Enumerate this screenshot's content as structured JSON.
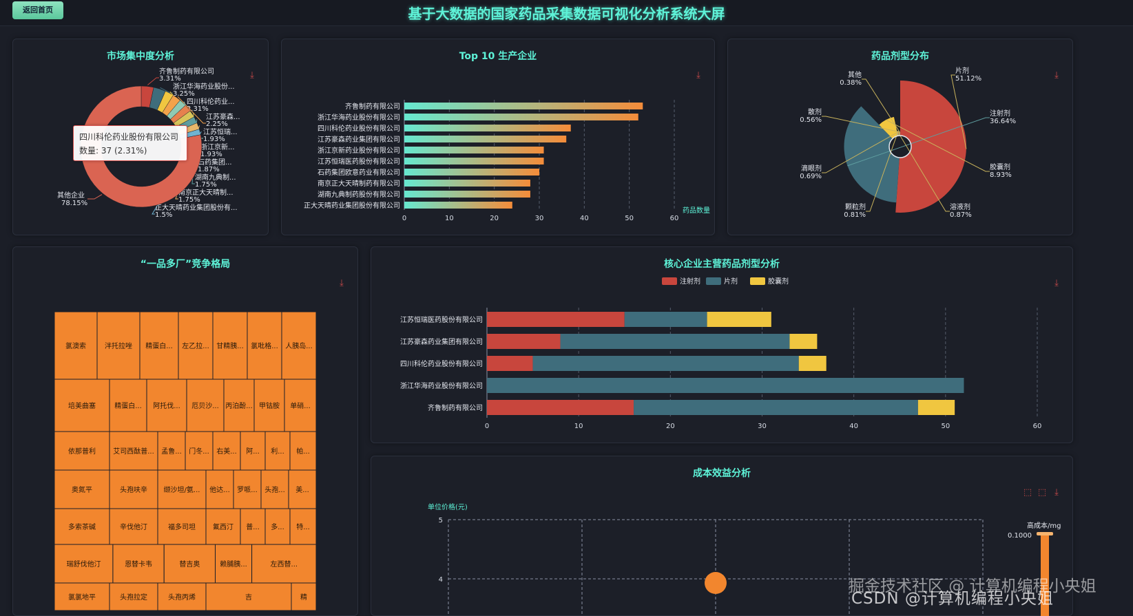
{
  "header": {
    "back_label": "返回首页",
    "title": "基于大数据的国家药品采集数据可视化分析系统大屏"
  },
  "market": {
    "title": "市场集中度分析",
    "tooltip_name": "四川科伦药业股份有限公司",
    "tooltip_value": "数量: 37 (2.31%)",
    "slices": [
      {
        "name": "齐鲁制药有限公司",
        "pct": 3.31,
        "label": "齐鲁制药有限公司",
        "pct_label": "3.31%",
        "color": "#c8463d"
      },
      {
        "name": "浙江华海药业股份有限公司",
        "pct": 3.25,
        "label": "浙江华海药业股份...",
        "pct_label": "3.25%",
        "color": "#3f6d7c"
      },
      {
        "name": "四川科伦药业股份有限公司",
        "pct": 2.31,
        "label": "四川科伦药业...",
        "pct_label": "2.31%",
        "color": "#f0c640"
      },
      {
        "name": "江苏豪森药业集团有限公司",
        "pct": 2.25,
        "label": "江苏豪森...",
        "pct_label": "2.25%",
        "color": "#f3a24a"
      },
      {
        "name": "江苏恒瑞医药股份有限公司",
        "pct": 1.93,
        "label": "江苏恒瑞...",
        "pct_label": "1.93%",
        "color": "#8fcab3"
      },
      {
        "name": "浙江京新药业股份有限公司",
        "pct": 1.93,
        "label": "浙江京新...",
        "pct_label": "1.93%",
        "color": "#e6814e"
      },
      {
        "name": "石药集团欧意药业有限公司",
        "pct": 1.87,
        "label": "石药集团...",
        "pct_label": "1.87%",
        "color": "#d9c55a"
      },
      {
        "name": "湖南九典制药股份有限公司",
        "pct": 1.75,
        "label": "湖南九典制...",
        "pct_label": "1.75%",
        "color": "#5f9ea0"
      },
      {
        "name": "南京正大天晴制药有限公司",
        "pct": 1.75,
        "label": "南京正大天晴制...",
        "pct_label": "1.75%",
        "color": "#e8b66a"
      },
      {
        "name": "正大天晴药业集团股份有限公司",
        "pct": 1.5,
        "label": "正大天晴药业集团股份有...",
        "pct_label": "1.5%",
        "color": "#6fb3d2"
      },
      {
        "name": "其他企业",
        "pct": 78.15,
        "label": "其他企业",
        "pct_label": "78.15%",
        "color": "#da6452"
      }
    ]
  },
  "top10": {
    "title": "Top 10 生产企业",
    "axis_name": "药品数量",
    "ticks": [
      "0",
      "10",
      "20",
      "30",
      "40",
      "50",
      "60"
    ]
  },
  "dosage": {
    "title": "药品剂型分布"
  },
  "treemap": {
    "title": "“一品多厂”竞争格局",
    "cells": [
      "氯澳索",
      "泮托拉唑",
      "精蛋白...",
      "左乙拉...",
      "甘精胰...",
      "氯吡格...",
      "人胰岛...",
      "培美曲塞",
      "精蛋白...",
      "阿托伐...",
      "厄贝沙...",
      "丙泊酚...",
      "甲钴胺",
      "单硝...",
      "依那普利",
      "艾司西酞普...",
      "孟鲁...",
      "门冬...",
      "右美...",
      "阿...",
      "利...",
      "帕...",
      "奥氮平",
      "头孢呋辛",
      "缬沙坦/氨...",
      "他达...",
      "罗哌...",
      "头孢...",
      "美...",
      "多索茶碱",
      "辛伐他汀",
      "福多司坦",
      "氟西汀",
      "普...",
      "多...",
      "特...",
      "瑞舒伐他汀",
      "恩替卡韦",
      "替吉奥",
      "赖脯胰...",
      "左西替...",
      "氯氯地平",
      "头孢拉定",
      "头孢丙烯",
      "吉",
      "精"
    ]
  },
  "core": {
    "title": "核心企业主营药品剂型分析",
    "ticks": [
      "0",
      "10",
      "20",
      "30",
      "40",
      "50",
      "60"
    ]
  },
  "cost": {
    "title": "成本效益分析",
    "yaxis_name": "单位价格(元)",
    "ytick_5": "5",
    "ytick_4": "4",
    "legend_title": "高成本/mg",
    "legend_value": "0.1000"
  },
  "watermark": {
    "line1": "掘金技术社区 @ 计算机编程小央姐",
    "line2": "CSDN @计算机编程小央姐"
  },
  "chart_data": [
    {
      "type": "pie",
      "title": "市场集中度分析",
      "categories": [
        "齐鲁制药有限公司",
        "浙江华海药业股份有限公司",
        "四川科伦药业股份有限公司",
        "江苏豪森药业集团有限公司",
        "江苏恒瑞医药股份有限公司",
        "浙江京新药业股份有限公司",
        "石药集团欧意药业有限公司",
        "湖南九典制药股份有限公司",
        "南京正大天晴制药有限公司",
        "正大天晴药业集团股份有限公司",
        "其他企业"
      ],
      "values": [
        3.31,
        3.25,
        2.31,
        2.25,
        1.93,
        1.93,
        1.87,
        1.75,
        1.75,
        1.5,
        78.15
      ]
    },
    {
      "type": "bar",
      "orientation": "horizontal",
      "title": "Top 10 生产企业",
      "categories": [
        "齐鲁制药有限公司",
        "浙江华海药业股份有限公司",
        "四川科伦药业股份有限公司",
        "江苏豪森药业集团有限公司",
        "浙江京新药业股份有限公司",
        "江苏恒瑞医药股份有限公司",
        "石药集团欧意药业有限公司",
        "南京正大天晴制药有限公司",
        "湖南九典制药股份有限公司",
        "正大天晴药业集团股份有限公司"
      ],
      "values": [
        53,
        52,
        37,
        36,
        31,
        31,
        30,
        28,
        28,
        24
      ],
      "xlabel": "药品数量",
      "xlim": [
        0,
        60
      ]
    },
    {
      "type": "pie",
      "variant": "rose",
      "title": "药品剂型分布",
      "categories": [
        "片剂",
        "注射剂",
        "胶囊剂",
        "溶液剂",
        "颗粒剂",
        "滴眼剂",
        "散剂",
        "其他"
      ],
      "values": [
        51.12,
        36.64,
        8.93,
        0.87,
        0.81,
        0.69,
        0.56,
        0.38
      ],
      "labels": [
        "51.12%",
        "36.64%",
        "8.93%",
        "0.87%",
        "0.81%",
        "0.69%",
        "0.56%",
        "0.38%"
      ],
      "colors": [
        "#c8463d",
        "#3f6d7c",
        "#f0c640",
        "#8fcab3",
        "#e6814e",
        "#d9c55a",
        "#5f9ea0",
        "#e8b66a"
      ]
    },
    {
      "type": "bar",
      "orientation": "horizontal",
      "stacked": true,
      "title": "核心企业主营药品剂型分析",
      "categories": [
        "江苏恒瑞医药股份有限公司",
        "江苏豪森药业集团有限公司",
        "四川科伦药业股份有限公司",
        "浙江华海药业股份有限公司",
        "齐鲁制药有限公司"
      ],
      "series": [
        {
          "name": "注射剂",
          "values": [
            15,
            8,
            5,
            0,
            16
          ],
          "color": "#c8463d"
        },
        {
          "name": "片剂",
          "values": [
            9,
            25,
            29,
            52,
            31
          ],
          "color": "#3f6d7c"
        },
        {
          "name": "胶囊剂",
          "values": [
            7,
            3,
            3,
            0,
            4
          ],
          "color": "#f0c640"
        }
      ],
      "xlim": [
        0,
        60
      ]
    },
    {
      "type": "scatter",
      "title": "成本效益分析",
      "ylabel": "单位价格(元)",
      "ylim": [
        4,
        5
      ],
      "visible_points": [
        {
          "y": 4
        }
      ]
    }
  ]
}
